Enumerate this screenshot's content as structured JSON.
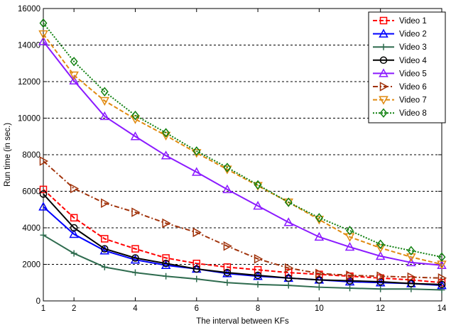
{
  "chart_data": {
    "type": "line",
    "title": "",
    "xlabel": "The interval between KFs",
    "ylabel": "Run time (in sec.)",
    "xlim": [
      1,
      14
    ],
    "ylim": [
      0,
      16000
    ],
    "xticks": [
      1,
      2,
      4,
      6,
      8,
      10,
      12,
      14
    ],
    "yticks": [
      0,
      2000,
      4000,
      6000,
      8000,
      10000,
      12000,
      14000,
      16000
    ],
    "grid": "horizontal-dashed",
    "legend_position": "top-right",
    "x": [
      1,
      2,
      3,
      4,
      5,
      6,
      7,
      8,
      9,
      10,
      11,
      12,
      13,
      14
    ],
    "series": [
      {
        "name": "Video 1",
        "color": "#ff0000",
        "dash": "dashed",
        "marker": "square",
        "values": [
          6100,
          4550,
          3400,
          2850,
          2350,
          2050,
          1850,
          1700,
          1550,
          1450,
          1350,
          1250,
          1150,
          1000
        ]
      },
      {
        "name": "Video 2",
        "color": "#0000ff",
        "dash": "solid",
        "marker": "triangle-up",
        "values": [
          5150,
          3650,
          2750,
          2250,
          1950,
          1750,
          1500,
          1350,
          1250,
          1150,
          1050,
          1000,
          950,
          850
        ]
      },
      {
        "name": "Video 3",
        "color": "#2e6b4e",
        "dash": "solid",
        "marker": "plus",
        "values": [
          3600,
          2600,
          1850,
          1550,
          1350,
          1200,
          1000,
          900,
          850,
          750,
          700,
          650,
          650,
          600
        ]
      },
      {
        "name": "Video 4",
        "color": "#000000",
        "dash": "solid",
        "marker": "circle",
        "values": [
          5850,
          4000,
          2850,
          2350,
          2050,
          1750,
          1550,
          1400,
          1250,
          1150,
          1100,
          1050,
          950,
          900
        ]
      },
      {
        "name": "Video 5",
        "color": "#8b1aff",
        "dash": "solid",
        "marker": "triangle-up",
        "values": [
          14200,
          12050,
          10100,
          9000,
          7950,
          7050,
          6100,
          5200,
          4300,
          3500,
          2950,
          2450,
          2100,
          1950
        ]
      },
      {
        "name": "Video 6",
        "color": "#a0320a",
        "dash": "dashdot",
        "marker": "triangle-right",
        "values": [
          7650,
          6150,
          5350,
          4850,
          4250,
          3750,
          3000,
          2300,
          1800,
          1500,
          1400,
          1350,
          1300,
          1250
        ]
      },
      {
        "name": "Video 7",
        "color": "#e08a10",
        "dash": "dashed",
        "marker": "triangle-down",
        "values": [
          14600,
          12350,
          10950,
          9950,
          9050,
          8100,
          7200,
          6300,
          5400,
          4450,
          3500,
          2900,
          2400,
          2000
        ]
      },
      {
        "name": "Video 8",
        "color": "#108010",
        "dash": "dotted",
        "marker": "diamond",
        "values": [
          15200,
          13100,
          11450,
          10150,
          9200,
          8200,
          7300,
          6350,
          5400,
          4550,
          3850,
          3100,
          2750,
          2400
        ]
      }
    ]
  }
}
